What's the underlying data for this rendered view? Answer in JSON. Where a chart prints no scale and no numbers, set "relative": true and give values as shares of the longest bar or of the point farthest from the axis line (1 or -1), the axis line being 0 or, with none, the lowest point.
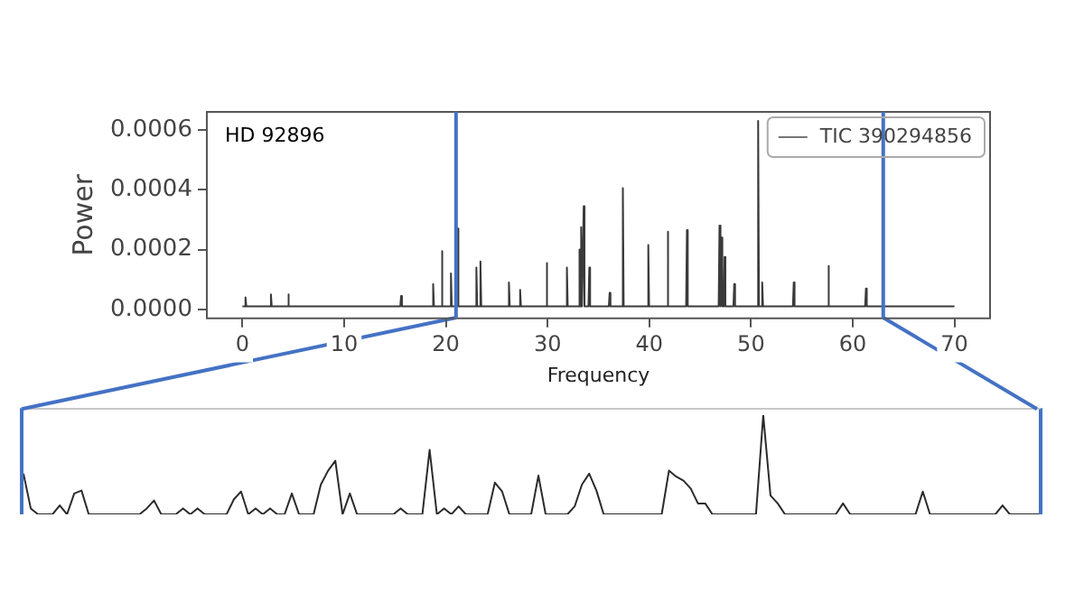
{
  "chart_data": [
    {
      "type": "line",
      "xlabel": "Frequency",
      "ylabel": "Power",
      "annotations": [
        "HD 92896"
      ],
      "legend": "top right",
      "grid": false,
      "marker": "none",
      "line_style": "solid",
      "xlim": [
        -3.5,
        73.5
      ],
      "xticks": [
        0,
        10,
        20,
        30,
        40,
        50,
        60,
        70
      ],
      "ylim": [
        -3e-05,
        0.00066
      ],
      "yticks": [
        {
          "value": 0,
          "label": "0.0000"
        },
        {
          "value": 0.0002,
          "label": "0.0002"
        },
        {
          "value": 0.0004,
          "label": "0.0004"
        },
        {
          "value": 0.0006,
          "label": "0.0006"
        }
      ],
      "ref_lines": [
        {
          "axis": "x",
          "value": 21,
          "color": "#4472c4"
        },
        {
          "axis": "x",
          "value": 63,
          "color": "#4472c4"
        }
      ],
      "series": [
        {
          "name": "TIC 390294856",
          "color": "#3a3a3a",
          "x": [
            0,
            0.22,
            0.3,
            0.38,
            2.72,
            2.8,
            2.88,
            4.42,
            4.5,
            4.58,
            15.52,
            15.6,
            15.68,
            18.67,
            18.75,
            18.83,
            19.52,
            19.6,
            19.68,
            20.42,
            20.5,
            20.58,
            21.07,
            21.15,
            21.23,
            22.92,
            23.0,
            23.08,
            23.32,
            23.4,
            23.48,
            26.12,
            26.2,
            26.28,
            27.22,
            27.3,
            27.38,
            29.82,
            29.9,
            29.98,
            31.82,
            31.9,
            31.98,
            33.02,
            33.1,
            33.18,
            33.22,
            33.3,
            33.38,
            33.47,
            33.55,
            33.63,
            34.02,
            34.1,
            34.18,
            36.02,
            36.1,
            36.18,
            37.32,
            37.4,
            37.48,
            39.82,
            39.9,
            39.98,
            41.72,
            41.8,
            41.88,
            43.62,
            43.7,
            43.78,
            46.82,
            46.9,
            46.98,
            47.02,
            47.1,
            47.18,
            47.32,
            47.4,
            47.48,
            48.27,
            48.35,
            48.43,
            50.62,
            50.7,
            50.78,
            51.02,
            51.1,
            51.18,
            54.12,
            54.2,
            54.28,
            57.52,
            57.6,
            57.68,
            61.22,
            61.3,
            61.38,
            70
          ],
          "values": [
            1e-05,
            1e-05,
            4e-05,
            1e-05,
            1e-05,
            5e-05,
            1e-05,
            1e-05,
            5e-05,
            1e-05,
            1e-05,
            4.5e-05,
            1e-05,
            1e-05,
            8.5e-05,
            1e-05,
            1e-05,
            0.000195,
            1e-05,
            1e-05,
            0.00012,
            1e-05,
            1e-05,
            0.00027,
            1e-05,
            1e-05,
            0.00014,
            1e-05,
            1e-05,
            0.00016,
            1e-05,
            1e-05,
            9e-05,
            1e-05,
            1e-05,
            6.5e-05,
            1e-05,
            1e-05,
            0.000155,
            1e-05,
            1e-05,
            0.00014,
            1e-05,
            1e-05,
            0.0002,
            1e-05,
            1e-05,
            0.000275,
            1e-05,
            1e-05,
            0.000345,
            1e-05,
            1e-05,
            0.00014,
            1e-05,
            1e-05,
            5.5e-05,
            1e-05,
            1e-05,
            0.000405,
            1e-05,
            1e-05,
            0.000215,
            1e-05,
            1e-05,
            0.00026,
            1e-05,
            1e-05,
            0.000265,
            1e-05,
            1e-05,
            0.00028,
            1e-05,
            1e-05,
            0.00024,
            1e-05,
            1e-05,
            0.000175,
            1e-05,
            1e-05,
            8.5e-05,
            1e-05,
            1e-05,
            0.00063,
            1e-05,
            1e-05,
            9e-05,
            1e-05,
            1e-05,
            9e-05,
            1e-05,
            1e-05,
            0.000145,
            1e-05,
            1e-05,
            7e-05,
            1e-05,
            1e-05
          ]
        }
      ]
    },
    {
      "type": "line",
      "relative": true,
      "marker": "none",
      "categories": [
        null,
        null,
        null,
        null,
        null,
        null,
        null,
        null,
        null,
        null,
        null,
        null,
        null,
        null,
        null,
        null,
        null,
        null,
        null,
        null,
        null,
        null,
        null,
        null,
        null,
        null,
        null,
        null,
        null,
        null,
        null,
        null,
        null,
        null,
        null,
        null,
        null,
        null,
        null,
        null,
        null,
        null,
        null,
        null,
        null,
        null,
        null,
        null,
        null,
        null,
        null,
        null,
        null,
        null,
        null,
        null,
        null,
        null,
        null,
        null,
        null,
        null,
        null,
        null,
        null,
        null,
        null,
        null,
        null,
        null,
        null,
        null,
        null,
        null,
        null,
        null,
        null,
        null,
        null,
        null,
        null,
        null,
        null,
        null,
        null,
        null,
        null,
        null,
        null,
        null,
        null,
        null,
        null,
        null,
        null,
        null,
        null,
        null,
        null,
        null,
        null,
        null,
        null,
        null,
        null,
        null,
        null,
        null,
        null,
        null,
        null,
        null,
        null,
        null,
        null,
        null,
        null,
        null,
        null,
        null,
        null,
        null,
        null,
        null,
        null,
        null,
        null,
        null,
        null,
        null,
        null,
        null,
        null,
        null,
        null,
        null,
        null,
        null,
        null,
        null,
        null
      ],
      "series": [
        {
          "color": "#2b2b2b",
          "values": [
            0.41,
            0.06,
            0,
            0,
            0,
            0.09,
            0,
            0.21,
            0.24,
            0,
            0,
            0,
            0,
            0,
            0,
            0,
            0,
            0.06,
            0.14,
            0,
            0,
            0,
            0.06,
            0,
            0.06,
            0,
            0,
            0,
            0,
            0.15,
            0.23,
            0,
            0.06,
            0,
            0.06,
            0,
            0,
            0.21,
            0,
            0,
            0,
            0.3,
            0.44,
            0.54,
            0,
            0.21,
            0,
            0,
            0,
            0,
            0,
            0,
            0.06,
            0,
            0,
            0,
            0.65,
            0,
            0.06,
            0,
            0.08,
            0,
            0,
            0,
            0,
            0.32,
            0.23,
            0,
            0,
            0,
            0,
            0.39,
            0,
            0,
            0,
            0,
            0.08,
            0.3,
            0.41,
            0.24,
            0,
            0,
            0,
            0,
            0,
            0,
            0,
            0,
            0,
            0.44,
            0.38,
            0.34,
            0.26,
            0.11,
            0.11,
            0,
            0,
            0,
            0,
            0,
            0,
            0,
            1,
            0.19,
            0.11,
            0,
            0,
            0,
            0,
            0,
            0,
            0,
            0,
            0.11,
            0,
            0,
            0,
            0,
            0,
            0,
            0,
            0,
            0,
            0,
            0.23,
            0,
            0,
            0,
            0,
            0,
            0,
            0,
            0,
            0,
            0,
            0.09,
            0,
            0,
            0,
            0,
            0
          ]
        }
      ]
    }
  ]
}
